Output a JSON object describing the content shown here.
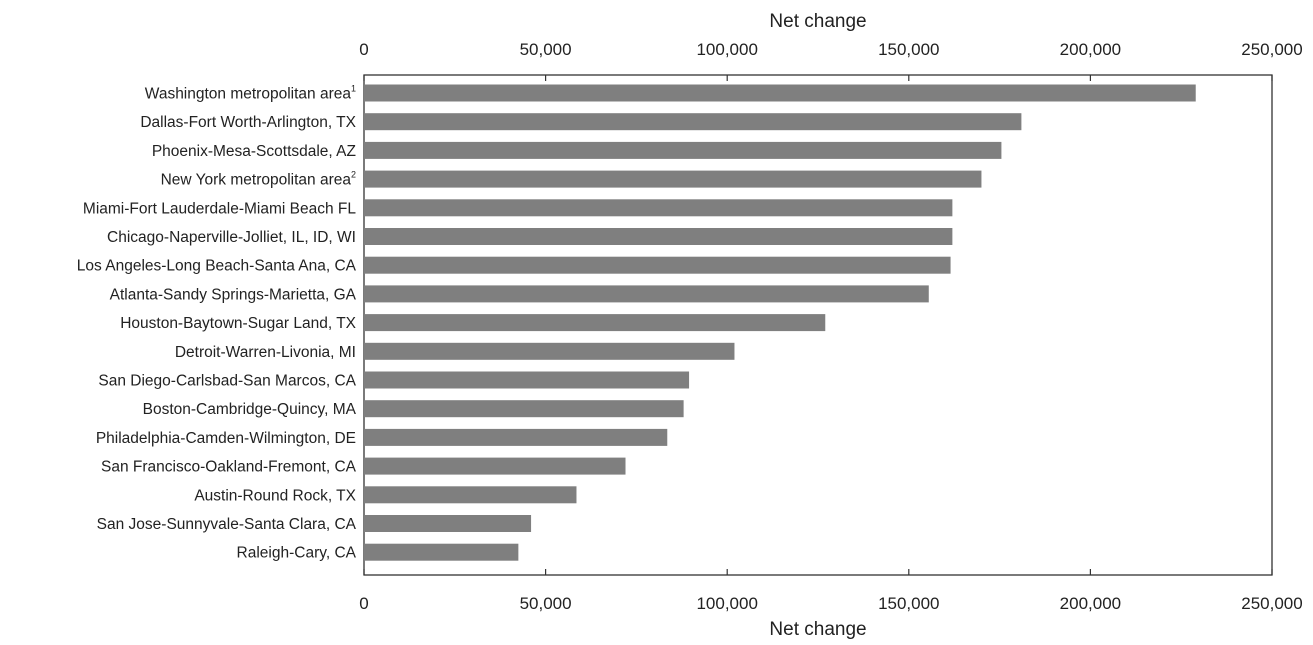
{
  "chart_data": {
    "type": "bar",
    "orientation": "horizontal",
    "xlabel": "Net change",
    "xlabel_bottom": "Net change",
    "xlim": [
      0,
      250000
    ],
    "ticks": [
      0,
      50000,
      100000,
      150000,
      200000,
      250000
    ],
    "tick_labels": [
      "0",
      "50,000",
      "100,000",
      "150,000",
      "200,000",
      "250,000"
    ],
    "grid": false,
    "bar_color": "#7f7f7f",
    "categories": [
      {
        "label": "Washington metropolitan area",
        "sup": "1"
      },
      {
        "label": "Dallas-Fort Worth-Arlington, TX",
        "sup": ""
      },
      {
        "label": "Phoenix-Mesa-Scottsdale, AZ",
        "sup": ""
      },
      {
        "label": "New York metropolitan area",
        "sup": "2"
      },
      {
        "label": "Miami-Fort Lauderdale-Miami Beach FL",
        "sup": ""
      },
      {
        "label": "Chicago-Naperville-Jolliet, IL, ID, WI",
        "sup": ""
      },
      {
        "label": "Los Angeles-Long Beach-Santa Ana, CA",
        "sup": ""
      },
      {
        "label": "Atlanta-Sandy Springs-Marietta, GA",
        "sup": ""
      },
      {
        "label": "Houston-Baytown-Sugar Land, TX",
        "sup": ""
      },
      {
        "label": "Detroit-Warren-Livonia, MI",
        "sup": ""
      },
      {
        "label": "San Diego-Carlsbad-San Marcos, CA",
        "sup": ""
      },
      {
        "label": "Boston-Cambridge-Quincy, MA",
        "sup": ""
      },
      {
        "label": "Philadelphia-Camden-Wilmington, DE",
        "sup": ""
      },
      {
        "label": "San Francisco-Oakland-Fremont, CA",
        "sup": ""
      },
      {
        "label": "Austin-Round Rock, TX",
        "sup": ""
      },
      {
        "label": "San Jose-Sunnyvale-Santa Clara, CA",
        "sup": ""
      },
      {
        "label": "Raleigh-Cary, CA",
        "sup": ""
      }
    ],
    "values": [
      229000,
      181000,
      175500,
      170000,
      162000,
      162000,
      161500,
      155500,
      127000,
      102000,
      89500,
      88000,
      83500,
      72000,
      58500,
      46000,
      42500
    ]
  }
}
